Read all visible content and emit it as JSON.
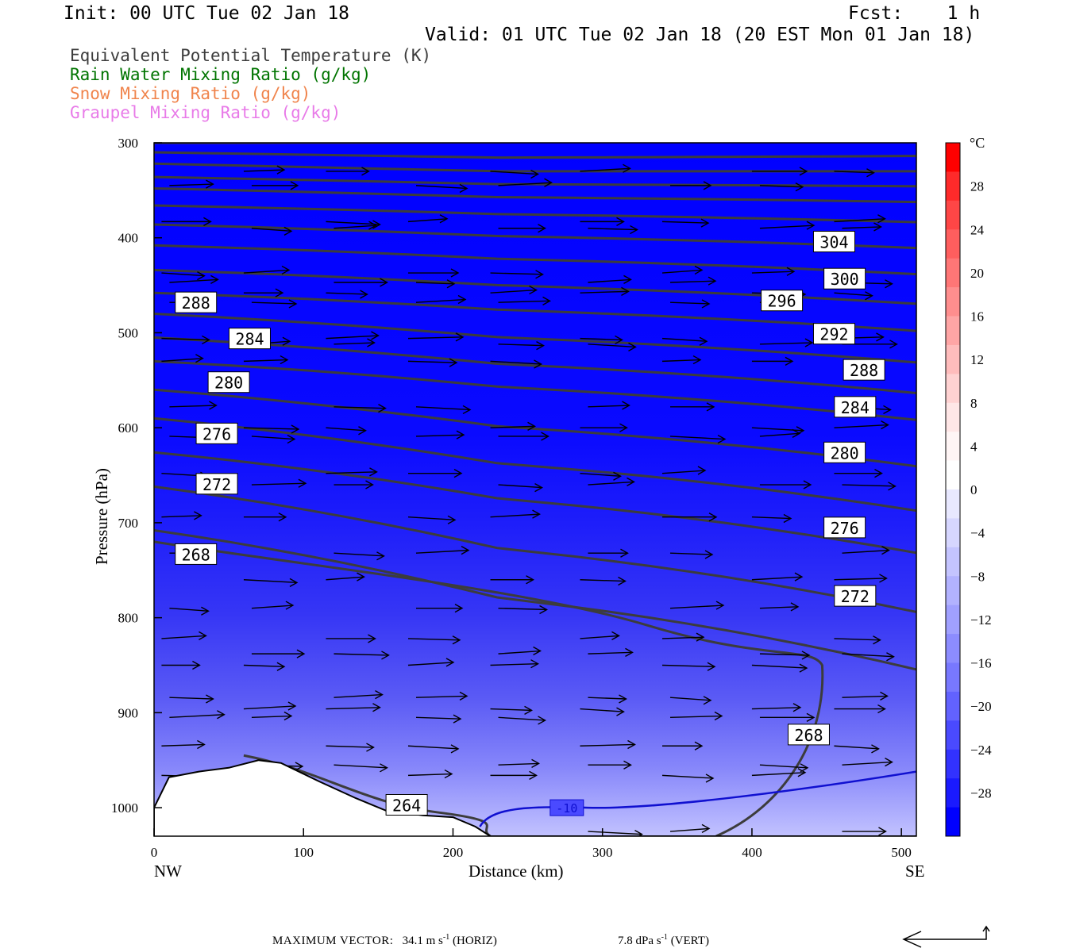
{
  "header": {
    "init": "Init: 00 UTC Tue 02 Jan 18",
    "fcst": "Fcst:    1 h",
    "valid": "Valid: 01 UTC Tue 02 Jan 18 (20 EST Mon 01 Jan 18)"
  },
  "legend": [
    {
      "label": "Equivalent Potential Temperature (K)",
      "color": "#3c3c3c"
    },
    {
      "label": "Rain Water Mixing Ratio (g/kg)",
      "color": "#007400"
    },
    {
      "label": "Snow Mixing Ratio (g/kg)",
      "color": "#f0844c"
    },
    {
      "label": "Graupel Mixing Ratio (g/kg)",
      "color": "#e87be8"
    }
  ],
  "footer": {
    "max_vector_label": "MAXIMUM VECTOR:",
    "horiz_value": "34.1 m s",
    "horiz_exp": "-1",
    "horiz_unit": "(HORIZ)",
    "vert_value": "7.8 dPa s",
    "vert_exp": "-1",
    "vert_unit": "(VERT)"
  },
  "chart_data": {
    "type": "cross-section",
    "xlabel": "Distance (km)",
    "ylabel": "Pressure (hPa)",
    "xlim": [
      0,
      510
    ],
    "ylim": [
      1030,
      300
    ],
    "x_ticks": [
      0,
      100,
      200,
      300,
      400,
      500
    ],
    "y_ticks": [
      300,
      400,
      500,
      600,
      700,
      800,
      900,
      1000
    ],
    "x_end_labels": {
      "left": "NW",
      "right": "SE"
    },
    "colorbar": {
      "unit": "°C",
      "ticks": [
        28,
        24,
        20,
        16,
        12,
        8,
        4,
        0,
        -4,
        -8,
        -12,
        -16,
        -20,
        -24,
        -28
      ],
      "range": [
        -32,
        32
      ],
      "colors_warm": [
        "#ff0000",
        "#ff2a2a",
        "#ff4646",
        "#ff5e5e",
        "#ff7676",
        "#ff8e8e",
        "#ffa5a5",
        "#ffbcbc",
        "#ffd2d2",
        "#ffe6e6",
        "#fff5f5",
        "#ffffff"
      ],
      "colors_cold": [
        "#e8e8ff",
        "#d6d6ff",
        "#c4c4ff",
        "#b2b2ff",
        "#a0a0ff",
        "#8c8cff",
        "#7878ff",
        "#6262ff",
        "#4a4aff",
        "#3232ff",
        "#1a1aff",
        "#0000ff"
      ]
    },
    "temperature_isotherm": {
      "value": -10,
      "label": "-10",
      "color": "#1010d0"
    },
    "theta_e_contours": [
      {
        "value": 304,
        "label_pos": [
          455,
          404
        ]
      },
      {
        "value": 300,
        "label_pos": [
          462,
          443
        ]
      },
      {
        "value": 296,
        "label_pos": [
          420,
          466
        ]
      },
      {
        "value": 292,
        "label_pos": [
          455,
          501
        ]
      },
      {
        "value": 288,
        "label_pos": [
          28,
          468
        ]
      },
      {
        "value": 288,
        "label_pos": [
          475,
          539
        ]
      },
      {
        "value": 284,
        "label_pos": [
          64,
          506
        ]
      },
      {
        "value": 284,
        "label_pos": [
          469,
          578
        ]
      },
      {
        "value": 280,
        "label_pos": [
          50,
          552
        ]
      },
      {
        "value": 280,
        "label_pos": [
          462,
          626
        ]
      },
      {
        "value": 276,
        "label_pos": [
          42,
          606
        ]
      },
      {
        "value": 276,
        "label_pos": [
          462,
          705
        ]
      },
      {
        "value": 272,
        "label_pos": [
          42,
          659
        ]
      },
      {
        "value": 272,
        "label_pos": [
          469,
          777
        ]
      },
      {
        "value": 268,
        "label_pos": [
          28,
          733
        ]
      },
      {
        "value": 268,
        "label_pos": [
          438,
          923
        ]
      },
      {
        "value": 264,
        "label_pos": [
          169,
          997
        ]
      }
    ]
  }
}
